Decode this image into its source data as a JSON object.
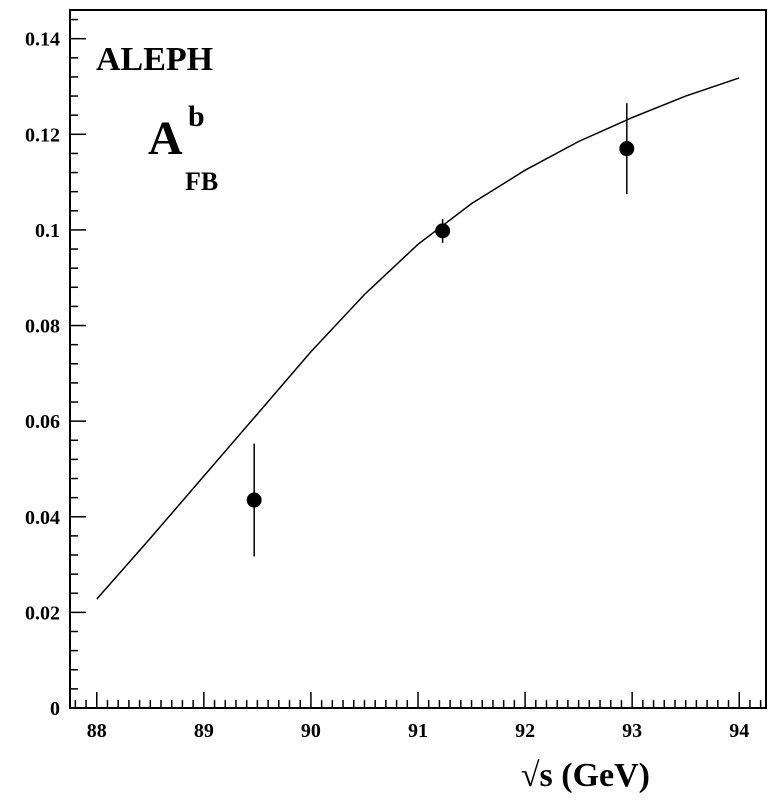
{
  "chart_data": {
    "type": "scatter",
    "experiment": "ALEPH",
    "observable": {
      "base": "A",
      "sup": "b",
      "sub": "FB"
    },
    "xlabel": "√s (GeV)",
    "ylabel": "",
    "xlim": [
      87.75,
      94.25
    ],
    "ylim": [
      0,
      0.146
    ],
    "x_ticks": [
      88,
      89,
      90,
      91,
      92,
      93,
      94
    ],
    "x_tick_labels": [
      "88",
      "89",
      "90",
      "91",
      "92",
      "93",
      "94"
    ],
    "y_ticks": [
      0,
      0.02,
      0.04,
      0.06,
      0.08,
      0.1,
      0.12,
      0.14
    ],
    "y_tick_labels": [
      "0",
      "0.02",
      "0.04",
      "0.06",
      "0.08",
      "0.1",
      "0.12",
      "0.14"
    ],
    "grid": false,
    "series": [
      {
        "kind": "points",
        "x": [
          89.47,
          91.23,
          92.95
        ],
        "y": [
          0.0435,
          0.0998,
          0.117
        ],
        "yerr": [
          0.0118,
          0.0025,
          0.0095
        ]
      },
      {
        "kind": "curve",
        "x": [
          88.0,
          88.5,
          89.0,
          89.5,
          90.0,
          90.5,
          91.0,
          91.5,
          92.0,
          92.5,
          93.0,
          93.5,
          94.0
        ],
        "y": [
          0.0228,
          0.0355,
          0.0485,
          0.0615,
          0.0745,
          0.0865,
          0.097,
          0.1055,
          0.1125,
          0.1185,
          0.1235,
          0.128,
          0.1318
        ]
      }
    ]
  }
}
